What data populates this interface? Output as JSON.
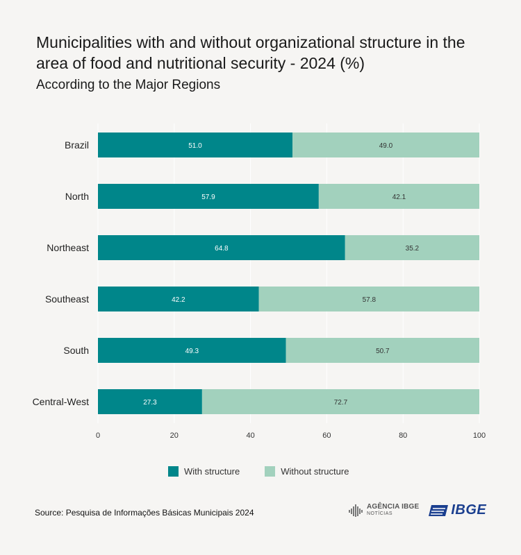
{
  "title": "Municipalities with and without organizational structure in the area of food and nutritional security - 2024  (%)",
  "subtitle": "According to the Major Regions",
  "source": "Source: Pesquisa de Informações Básicas Municipais 2024",
  "logos": {
    "agencia_line1": "AGÊNCIA IBGE",
    "agencia_line2": "NOTÍCIAS",
    "ibge": "IBGE"
  },
  "colors": {
    "with": "#00868a",
    "without": "#a2d1bd",
    "grid": "#ffffff",
    "ibge_blue": "#1b3f8f"
  },
  "chart_data": {
    "type": "bar",
    "orientation": "horizontal",
    "stacked": true,
    "categories": [
      "Brazil",
      "North",
      "Northeast",
      "Southeast",
      "South",
      "Central-West"
    ],
    "series": [
      {
        "name": "With structure",
        "values": [
          51.0,
          57.9,
          64.8,
          42.2,
          49.3,
          27.3
        ]
      },
      {
        "name": "Without structure",
        "values": [
          49.0,
          42.1,
          35.2,
          57.8,
          50.7,
          72.7
        ]
      }
    ],
    "value_labels": [
      [
        "51.0",
        "57.9",
        "64.8",
        "42.2",
        "49.3",
        "27.3"
      ],
      [
        "49.0",
        "42.1",
        "35.2",
        "57.8",
        "50.7",
        "72.7"
      ]
    ],
    "xticks": [
      "0",
      "20",
      "40",
      "60",
      "80",
      "100"
    ],
    "xlim": [
      0,
      100
    ],
    "grid": true,
    "legend": "bottom"
  }
}
